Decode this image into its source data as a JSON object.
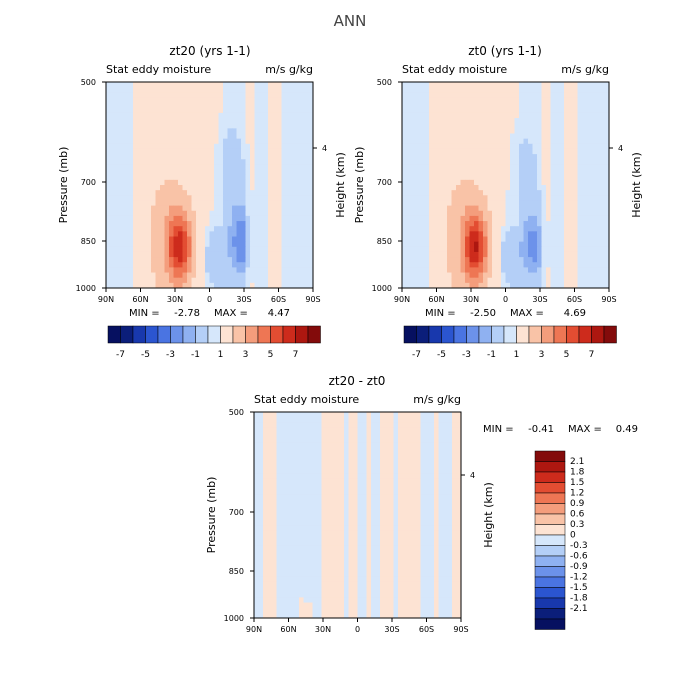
{
  "figure_title": "ANN",
  "colors": {
    "positive": [
      "#fde3d3",
      "#f9c3a7",
      "#f49d7c",
      "#ee7654",
      "#e34d32",
      "#cd2b1c",
      "#ad1710",
      "#830b0b"
    ],
    "negative": [
      "#d6e7fb",
      "#b4cff7",
      "#8fb1f1",
      "#6c92ea",
      "#4a74e2",
      "#2b55d0",
      "#1838ad",
      "#0b1e7a",
      "#061060"
    ]
  },
  "chart_data": [
    {
      "id": "zt20",
      "type": "heatmap",
      "title": "zt20 (yrs 1-1)",
      "left_subtitle": "Stat eddy moisture",
      "right_subtitle": "m/s g/kg",
      "ylabel": "Pressure (mb)",
      "y2label": "Height (km)",
      "y_ticks": [
        "500",
        "700",
        "850",
        "1000"
      ],
      "y2_ticks": [
        "4"
      ],
      "x_ticks": [
        "90N",
        "60N",
        "30N",
        "0",
        "30S",
        "60S",
        "90S"
      ],
      "min_label": "MIN =",
      "min_value": "-2.78",
      "max_label": "MAX =",
      "max_value": "4.47",
      "colorbar_labels": [
        "-7",
        "-5",
        "-3",
        "-1",
        "1",
        "3",
        "5",
        "7"
      ],
      "xlim": [
        90,
        -90
      ],
      "ylim": [
        500,
        1000
      ],
      "features": [
        {
          "lat": 26,
          "p": 900,
          "value": 4.47,
          "lat_spread": 7,
          "p_spread": 55
        },
        {
          "lat": 35,
          "p": 880,
          "value": 1.2,
          "lat_spread": 14,
          "p_spread": 110
        },
        {
          "lat": -28,
          "p": 890,
          "value": -2.78,
          "lat_spread": 6,
          "p_spread": 55
        },
        {
          "lat": -20,
          "p": 800,
          "value": -1.1,
          "lat_spread": 10,
          "p_spread": 160
        },
        {
          "lat": -5,
          "p": 930,
          "value": -1.0,
          "lat_spread": 8,
          "p_spread": 50
        }
      ]
    },
    {
      "id": "zt0",
      "type": "heatmap",
      "title": "zt0 (yrs 1-1)",
      "left_subtitle": "Stat eddy moisture",
      "right_subtitle": "m/s g/kg",
      "ylabel": "Pressure (mb)",
      "y2label": "Height (km)",
      "y_ticks": [
        "500",
        "700",
        "850",
        "1000"
      ],
      "y2_ticks": [
        "4"
      ],
      "x_ticks": [
        "90N",
        "60N",
        "30N",
        "0",
        "30S",
        "60S",
        "90S"
      ],
      "min_label": "MIN =",
      "min_value": "-2.50",
      "max_label": "MAX =",
      "max_value": "4.69",
      "colorbar_labels": [
        "-7",
        "-5",
        "-3",
        "-1",
        "1",
        "3",
        "5",
        "7"
      ],
      "xlim": [
        90,
        -90
      ],
      "ylim": [
        500,
        1000
      ],
      "features": [
        {
          "lat": 26,
          "p": 900,
          "value": 4.69,
          "lat_spread": 7,
          "p_spread": 55
        },
        {
          "lat": 35,
          "p": 880,
          "value": 1.2,
          "lat_spread": 14,
          "p_spread": 110
        },
        {
          "lat": -25,
          "p": 900,
          "value": -2.5,
          "lat_spread": 6,
          "p_spread": 50
        },
        {
          "lat": -18,
          "p": 800,
          "value": -1.0,
          "lat_spread": 10,
          "p_spread": 150
        },
        {
          "lat": -5,
          "p": 930,
          "value": -1.0,
          "lat_spread": 8,
          "p_spread": 50
        }
      ]
    },
    {
      "id": "diff",
      "type": "heatmap",
      "title": "zt20 - zt0",
      "left_subtitle": "Stat eddy moisture",
      "right_subtitle": "m/s g/kg",
      "ylabel": "Pressure (mb)",
      "y2label": "Height (km)",
      "y_ticks": [
        "500",
        "700",
        "850",
        "1000"
      ],
      "y2_ticks": [
        "4"
      ],
      "x_ticks": [
        "90N",
        "60N",
        "30N",
        "0",
        "30S",
        "60S",
        "90S"
      ],
      "min_label": "MIN =",
      "min_value": "-0.41",
      "max_label": "MAX =",
      "max_value": "0.49",
      "colorbar_labels": [
        "2.1",
        "1.8",
        "1.5",
        "1.2",
        "0.9",
        "0.6",
        "0.3",
        "0",
        "-0.3",
        "-0.6",
        "-0.9",
        "-1.2",
        "-1.5",
        "-1.8",
        "-2.1"
      ],
      "xlim": [
        90,
        -90
      ],
      "ylim": [
        500,
        1000
      ],
      "features": [
        {
          "lat": 42,
          "p": 985,
          "value": 0.49,
          "lat_spread": 3,
          "p_spread": 15
        }
      ]
    }
  ]
}
